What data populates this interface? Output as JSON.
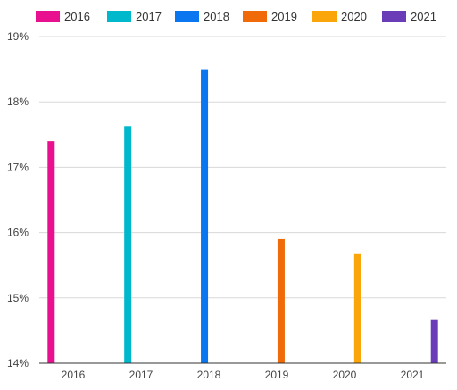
{
  "chart_data": {
    "type": "bar",
    "title": "",
    "xlabel": "",
    "ylabel": "",
    "categories": [
      "2016",
      "2017",
      "2018",
      "2019",
      "2020",
      "2021"
    ],
    "series": [
      {
        "name": "2016",
        "color": "#E8108F",
        "values": [
          17.4,
          null,
          null,
          null,
          null,
          null
        ]
      },
      {
        "name": "2017",
        "color": "#00B8CC",
        "values": [
          null,
          17.63,
          null,
          null,
          null,
          null
        ]
      },
      {
        "name": "2018",
        "color": "#0A76F0",
        "values": [
          null,
          null,
          18.5,
          null,
          null,
          null
        ]
      },
      {
        "name": "2019",
        "color": "#F06A0A",
        "values": [
          null,
          null,
          null,
          15.9,
          null,
          null
        ]
      },
      {
        "name": "2020",
        "color": "#FAA50A",
        "values": [
          null,
          null,
          null,
          null,
          15.67,
          null
        ]
      },
      {
        "name": "2021",
        "color": "#6A3CB8",
        "values": [
          null,
          null,
          null,
          null,
          null,
          14.66
        ]
      }
    ],
    "ylim": [
      14,
      19
    ],
    "yticks": [
      "14%",
      "15%",
      "16%",
      "17%",
      "18%",
      "19%"
    ],
    "grid": true,
    "legend_position": "top-left"
  }
}
